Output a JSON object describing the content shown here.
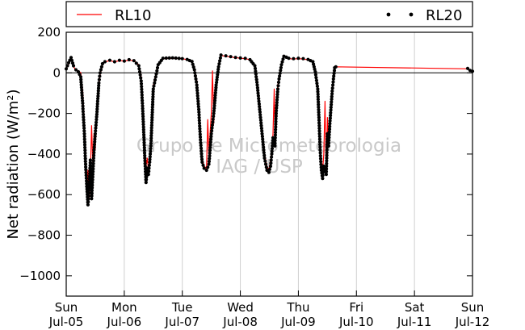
{
  "chart_data": {
    "type": "line",
    "ylabel": "Net radiation (W/m²)",
    "xlabel": "",
    "ylim": [
      -1100,
      200
    ],
    "y_ticks": [
      200,
      0,
      -200,
      -400,
      -600,
      -800,
      -1000
    ],
    "y_tick_labels": [
      "200",
      "0",
      "−200",
      "−400",
      "−600",
      "−800",
      "−1000"
    ],
    "x_unit": "hours since Sun Jul-05 00:00",
    "xlim": [
      0,
      168
    ],
    "x_ticks": [
      {
        "day": "Sun",
        "date": "Jul-05",
        "hour": 0
      },
      {
        "day": "Mon",
        "date": "Jul-06",
        "hour": 24
      },
      {
        "day": "Tue",
        "date": "Jul-07",
        "hour": 48
      },
      {
        "day": "Wed",
        "date": "Jul-08",
        "hour": 72
      },
      {
        "day": "Thu",
        "date": "Jul-09",
        "hour": 96
      },
      {
        "day": "Fri",
        "date": "Jul-10",
        "hour": 120
      },
      {
        "day": "Sat",
        "date": "Jul-11",
        "hour": 144
      },
      {
        "day": "Sun",
        "date": "Jul-12",
        "hour": 168
      }
    ],
    "grid": "vertical",
    "zero_line": true,
    "legend_position": "top",
    "watermark": [
      "Grupo de Micrometeorologia",
      "IAG / USP"
    ],
    "series": [
      {
        "name": "RL10",
        "color": "#ff0000",
        "style": "line",
        "points": [
          [
            0,
            20
          ],
          [
            1,
            45
          ],
          [
            2,
            70
          ],
          [
            3,
            30
          ],
          [
            4,
            15
          ],
          [
            5,
            10
          ],
          [
            6,
            0
          ],
          [
            6.8,
            -90
          ],
          [
            7.5,
            -260
          ],
          [
            8.0,
            -380
          ],
          [
            8.5,
            -600
          ],
          [
            9.0,
            -480
          ],
          [
            9.5,
            -620
          ],
          [
            10.0,
            -500
          ],
          [
            10.5,
            -260
          ],
          [
            11.0,
            -450
          ],
          [
            11.5,
            -300
          ],
          [
            12.0,
            -380
          ],
          [
            12.5,
            -220
          ],
          [
            13.0,
            -150
          ],
          [
            13.5,
            -60
          ],
          [
            14.0,
            -10
          ],
          [
            15,
            40
          ],
          [
            16,
            55
          ],
          [
            18,
            60
          ],
          [
            20,
            55
          ],
          [
            22,
            60
          ],
          [
            24,
            58
          ],
          [
            26,
            62
          ],
          [
            28,
            60
          ],
          [
            30,
            40
          ],
          [
            31,
            -20
          ],
          [
            31.5,
            -120
          ],
          [
            32.0,
            -240
          ],
          [
            32.5,
            -380
          ],
          [
            33.0,
            -460
          ],
          [
            33.5,
            -420
          ],
          [
            34.0,
            -480
          ],
          [
            34.5,
            -440
          ],
          [
            35.0,
            -350
          ],
          [
            35.5,
            -200
          ],
          [
            36.0,
            -60
          ],
          [
            37,
            -10
          ],
          [
            38,
            40
          ],
          [
            40,
            70
          ],
          [
            44,
            72
          ],
          [
            48,
            70
          ],
          [
            50,
            65
          ],
          [
            52,
            55
          ],
          [
            53,
            20
          ],
          [
            54,
            -40
          ],
          [
            54.8,
            -150
          ],
          [
            55.5,
            -300
          ],
          [
            56.2,
            -420
          ],
          [
            57.0,
            -460
          ],
          [
            58.0,
            -470
          ],
          [
            58.5,
            -230
          ],
          [
            59,
            -400
          ],
          [
            60,
            -200
          ],
          [
            60.5,
            10
          ],
          [
            61,
            -250
          ],
          [
            61.5,
            -80
          ],
          [
            62,
            -40
          ],
          [
            63,
            40
          ],
          [
            64,
            85
          ],
          [
            66,
            82
          ],
          [
            68,
            78
          ],
          [
            70,
            75
          ],
          [
            72,
            72
          ],
          [
            74,
            70
          ],
          [
            76,
            65
          ],
          [
            78,
            40
          ],
          [
            79,
            -40
          ],
          [
            80,
            -150
          ],
          [
            81,
            -280
          ],
          [
            82,
            -400
          ],
          [
            83,
            -460
          ],
          [
            83.8,
            -480
          ],
          [
            84.5,
            -430
          ],
          [
            85.0,
            -380
          ],
          [
            85.5,
            -300
          ],
          [
            86.0,
            -80
          ],
          [
            86.3,
            -320
          ],
          [
            86.8,
            -140
          ],
          [
            87.5,
            -60
          ],
          [
            88,
            -20
          ],
          [
            89,
            40
          ],
          [
            90,
            80
          ],
          [
            92,
            70
          ],
          [
            94,
            68
          ],
          [
            96,
            70
          ],
          [
            98,
            68
          ],
          [
            100,
            65
          ],
          [
            102,
            55
          ],
          [
            103,
            10
          ],
          [
            104,
            -60
          ],
          [
            104.5,
            -200
          ],
          [
            105,
            -360
          ],
          [
            105.5,
            -460
          ],
          [
            106,
            -480
          ],
          [
            106.5,
            -400
          ],
          [
            107,
            -140
          ],
          [
            107.5,
            -500
          ],
          [
            108,
            -220
          ],
          [
            108.5,
            -350
          ],
          [
            109,
            -260
          ],
          [
            110,
            -80
          ],
          [
            110.5,
            -30
          ],
          [
            111,
            20
          ],
          [
            111.5,
            30
          ],
          [
            166,
            20
          ],
          [
            167,
            15
          ],
          [
            168,
            10
          ]
        ]
      },
      {
        "name": "RL20",
        "color": "#000000",
        "style": "markers",
        "points": [
          [
            0,
            20
          ],
          [
            1,
            50
          ],
          [
            2,
            75
          ],
          [
            3,
            35
          ],
          [
            4,
            15
          ],
          [
            5,
            5
          ],
          [
            6,
            -20
          ],
          [
            6.8,
            -150
          ],
          [
            7.5,
            -300
          ],
          [
            8.0,
            -450
          ],
          [
            8.5,
            -560
          ],
          [
            9.0,
            -650
          ],
          [
            9.5,
            -550
          ],
          [
            10.0,
            -430
          ],
          [
            10.5,
            -620
          ],
          [
            11.0,
            -500
          ],
          [
            11.5,
            -380
          ],
          [
            12.0,
            -300
          ],
          [
            12.5,
            -230
          ],
          [
            13.0,
            -140
          ],
          [
            13.5,
            -50
          ],
          [
            14.0,
            0
          ],
          [
            15,
            45
          ],
          [
            16,
            55
          ],
          [
            18,
            62
          ],
          [
            20,
            55
          ],
          [
            22,
            62
          ],
          [
            24,
            58
          ],
          [
            26,
            65
          ],
          [
            28,
            60
          ],
          [
            30,
            35
          ],
          [
            31,
            -40
          ],
          [
            31.5,
            -150
          ],
          [
            32.0,
            -280
          ],
          [
            32.5,
            -420
          ],
          [
            33.0,
            -540
          ],
          [
            33.5,
            -470
          ],
          [
            34.0,
            -500
          ],
          [
            34.5,
            -440
          ],
          [
            35.0,
            -360
          ],
          [
            35.5,
            -220
          ],
          [
            36.0,
            -80
          ],
          [
            37,
            -20
          ],
          [
            38,
            40
          ],
          [
            40,
            72
          ],
          [
            44,
            74
          ],
          [
            48,
            70
          ],
          [
            50,
            66
          ],
          [
            52,
            56
          ],
          [
            53,
            15
          ],
          [
            54,
            -60
          ],
          [
            54.8,
            -180
          ],
          [
            55.5,
            -330
          ],
          [
            56.2,
            -440
          ],
          [
            57.0,
            -470
          ],
          [
            58.0,
            -480
          ],
          [
            59,
            -450
          ],
          [
            60,
            -300
          ],
          [
            61,
            -200
          ],
          [
            62,
            -60
          ],
          [
            63,
            30
          ],
          [
            64,
            88
          ],
          [
            66,
            84
          ],
          [
            68,
            80
          ],
          [
            70,
            76
          ],
          [
            72,
            73
          ],
          [
            74,
            71
          ],
          [
            76,
            65
          ],
          [
            78,
            35
          ],
          [
            79,
            -60
          ],
          [
            80,
            -180
          ],
          [
            81,
            -300
          ],
          [
            82,
            -420
          ],
          [
            83,
            -480
          ],
          [
            83.8,
            -490
          ],
          [
            84.5,
            -460
          ],
          [
            85.0,
            -400
          ],
          [
            85.5,
            -320
          ],
          [
            86.3,
            -360
          ],
          [
            86.8,
            -200
          ],
          [
            87.5,
            -80
          ],
          [
            88,
            -30
          ],
          [
            89,
            40
          ],
          [
            90,
            82
          ],
          [
            92,
            72
          ],
          [
            94,
            70
          ],
          [
            96,
            72
          ],
          [
            98,
            70
          ],
          [
            100,
            66
          ],
          [
            102,
            55
          ],
          [
            103,
            5
          ],
          [
            104,
            -80
          ],
          [
            104.5,
            -220
          ],
          [
            105,
            -380
          ],
          [
            105.5,
            -480
          ],
          [
            106,
            -520
          ],
          [
            106.5,
            -460
          ],
          [
            107.5,
            -500
          ],
          [
            108,
            -300
          ],
          [
            108.5,
            -360
          ],
          [
            109,
            -250
          ],
          [
            110,
            -90
          ],
          [
            110.5,
            -30
          ],
          [
            111,
            25
          ],
          [
            111.5,
            30
          ],
          [
            166,
            22
          ],
          [
            167,
            12
          ],
          [
            168,
            8
          ]
        ]
      }
    ]
  }
}
